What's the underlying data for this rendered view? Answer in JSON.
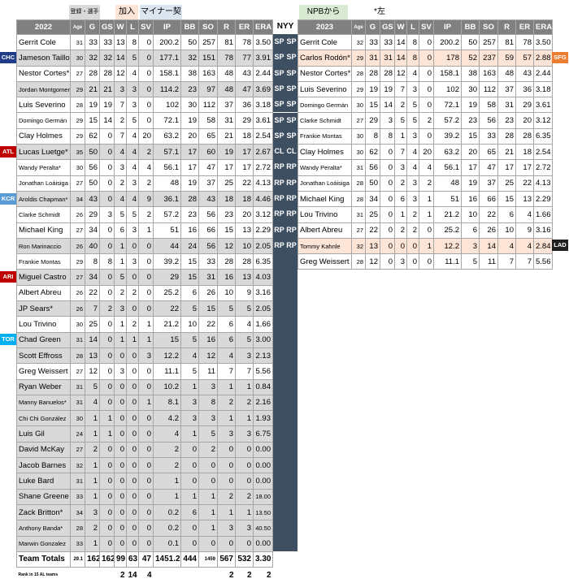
{
  "legend": {
    "gray_label": "登録・選手",
    "join_label": "加入",
    "minor_label": "マイナー契約",
    "npb_label": "NPBから",
    "left_note": "*左",
    "nyy_label": "NYY"
  },
  "colors": {
    "gray": "#d9d9d9",
    "peach": "#fce4d6",
    "header": "#808080",
    "role": "#3f4f62",
    "blue": "#dce6f1"
  },
  "table2022": {
    "year": "2022",
    "headers": [
      "Age",
      "G",
      "GS",
      "W",
      "L",
      "SV",
      "IP",
      "BB",
      "SO",
      "R",
      "ER",
      "ERA"
    ],
    "rows": [
      {
        "name": "Gerrit Cole",
        "age": "31",
        "g": "33",
        "gs": "33",
        "w": "13",
        "l": "8",
        "sv": "0",
        "ip": "200.2",
        "bb": "50",
        "so": "257",
        "r": "81",
        "er": "78",
        "era": "3.50",
        "style": ""
      },
      {
        "name": "Jameson Taillon",
        "age": "30",
        "g": "32",
        "gs": "32",
        "w": "14",
        "l": "5",
        "sv": "0",
        "ip": "177.1",
        "bb": "32",
        "so": "151",
        "r": "78",
        "er": "77",
        "era": "3.91",
        "style": "gray"
      },
      {
        "name": "Nestor Cortes*",
        "age": "27",
        "g": "28",
        "gs": "28",
        "w": "12",
        "l": "4",
        "sv": "0",
        "ip": "158.1",
        "bb": "38",
        "so": "163",
        "r": "48",
        "er": "43",
        "era": "2.44",
        "style": ""
      },
      {
        "name": "Jordan Montgomery*",
        "age": "29",
        "g": "21",
        "gs": "21",
        "w": "3",
        "l": "3",
        "sv": "0",
        "ip": "114.2",
        "bb": "23",
        "so": "97",
        "r": "48",
        "er": "47",
        "era": "3.69",
        "style": "gray",
        "small": true
      },
      {
        "name": "Luis Severino",
        "age": "28",
        "g": "19",
        "gs": "19",
        "w": "7",
        "l": "3",
        "sv": "0",
        "ip": "102",
        "bb": "30",
        "so": "112",
        "r": "37",
        "er": "36",
        "era": "3.18",
        "style": ""
      },
      {
        "name": "Domingo Germán",
        "age": "29",
        "g": "15",
        "gs": "14",
        "w": "2",
        "l": "5",
        "sv": "0",
        "ip": "72.1",
        "bb": "19",
        "so": "58",
        "r": "31",
        "er": "29",
        "era": "3.61",
        "style": "",
        "small": true
      },
      {
        "name": "Clay Holmes",
        "age": "29",
        "g": "62",
        "gs": "0",
        "w": "7",
        "l": "4",
        "sv": "20",
        "ip": "63.2",
        "bb": "20",
        "so": "65",
        "r": "21",
        "er": "18",
        "era": "2.54",
        "style": ""
      },
      {
        "name": "Lucas Luetge*",
        "age": "35",
        "g": "50",
        "gs": "0",
        "w": "4",
        "l": "4",
        "sv": "2",
        "ip": "57.1",
        "bb": "17",
        "so": "60",
        "r": "19",
        "er": "17",
        "era": "2.67",
        "style": "gray"
      },
      {
        "name": "Wandy Peralta*",
        "age": "30",
        "g": "56",
        "gs": "0",
        "w": "3",
        "l": "4",
        "sv": "4",
        "ip": "56.1",
        "bb": "17",
        "so": "47",
        "r": "17",
        "er": "17",
        "era": "2.72",
        "style": "",
        "small": true
      },
      {
        "name": "Jonathan Loáisiga",
        "age": "27",
        "g": "50",
        "gs": "0",
        "w": "2",
        "l": "3",
        "sv": "2",
        "ip": "48",
        "bb": "19",
        "so": "37",
        "r": "25",
        "er": "22",
        "era": "4.13",
        "style": "",
        "small": true
      },
      {
        "name": "Aroldis Chapman*",
        "age": "34",
        "g": "43",
        "gs": "0",
        "w": "4",
        "l": "4",
        "sv": "9",
        "ip": "36.1",
        "bb": "28",
        "so": "43",
        "r": "18",
        "er": "18",
        "era": "4.46",
        "style": "gray",
        "small": true
      },
      {
        "name": "Clarke Schmidt",
        "age": "26",
        "g": "29",
        "gs": "3",
        "w": "5",
        "l": "5",
        "sv": "2",
        "ip": "57.2",
        "bb": "23",
        "so": "56",
        "r": "23",
        "er": "20",
        "era": "3.12",
        "style": "",
        "small": true
      },
      {
        "name": "Michael King",
        "age": "27",
        "g": "34",
        "gs": "0",
        "w": "6",
        "l": "3",
        "sv": "1",
        "ip": "51",
        "bb": "16",
        "so": "66",
        "r": "15",
        "er": "13",
        "era": "2.29",
        "style": ""
      },
      {
        "name": "Ron Marinaccio",
        "age": "26",
        "g": "40",
        "gs": "0",
        "w": "1",
        "l": "0",
        "sv": "0",
        "ip": "44",
        "bb": "24",
        "so": "56",
        "r": "12",
        "er": "10",
        "era": "2.05",
        "style": "gray",
        "small": true
      },
      {
        "name": "Frankie Montas",
        "age": "29",
        "g": "8",
        "gs": "8",
        "w": "1",
        "l": "3",
        "sv": "0",
        "ip": "39.2",
        "bb": "15",
        "so": "33",
        "r": "28",
        "er": "28",
        "era": "6.35",
        "style": "",
        "small": true
      },
      {
        "name": "Miguel Castro",
        "age": "27",
        "g": "34",
        "gs": "0",
        "w": "5",
        "l": "0",
        "sv": "0",
        "ip": "29",
        "bb": "15",
        "so": "31",
        "r": "16",
        "er": "13",
        "era": "4.03",
        "style": "gray"
      },
      {
        "name": "Albert Abreu",
        "age": "26",
        "g": "22",
        "gs": "0",
        "w": "2",
        "l": "2",
        "sv": "0",
        "ip": "25.2",
        "bb": "6",
        "so": "26",
        "r": "10",
        "er": "9",
        "era": "3.16",
        "style": ""
      },
      {
        "name": "JP Sears*",
        "age": "26",
        "g": "7",
        "gs": "2",
        "w": "3",
        "l": "0",
        "sv": "0",
        "ip": "22",
        "bb": "5",
        "so": "15",
        "r": "5",
        "er": "5",
        "era": "2.05",
        "style": "gray"
      },
      {
        "name": "Lou Trivino",
        "age": "30",
        "g": "25",
        "gs": "0",
        "w": "1",
        "l": "2",
        "sv": "1",
        "ip": "21.2",
        "bb": "10",
        "so": "22",
        "r": "6",
        "er": "4",
        "era": "1.66",
        "style": ""
      },
      {
        "name": "Chad Green",
        "age": "31",
        "g": "14",
        "gs": "0",
        "w": "1",
        "l": "1",
        "sv": "1",
        "ip": "15",
        "bb": "5",
        "so": "16",
        "r": "6",
        "er": "5",
        "era": "3.00",
        "style": "gray"
      },
      {
        "name": "Scott Effross",
        "age": "28",
        "g": "13",
        "gs": "0",
        "w": "0",
        "l": "0",
        "sv": "3",
        "ip": "12.2",
        "bb": "4",
        "so": "12",
        "r": "4",
        "er": "3",
        "era": "2.13",
        "style": "gray"
      },
      {
        "name": "Greg Weissert",
        "age": "27",
        "g": "12",
        "gs": "0",
        "w": "3",
        "l": "0",
        "sv": "0",
        "ip": "11.1",
        "bb": "5",
        "so": "11",
        "r": "7",
        "er": "7",
        "era": "5.56",
        "style": ""
      },
      {
        "name": "Ryan Weber",
        "age": "31",
        "g": "5",
        "gs": "0",
        "w": "0",
        "l": "0",
        "sv": "0",
        "ip": "10.2",
        "bb": "1",
        "so": "3",
        "r": "1",
        "er": "1",
        "era": "0.84",
        "style": "gray"
      },
      {
        "name": "Manny Banuelos*",
        "age": "31",
        "g": "4",
        "gs": "0",
        "w": "0",
        "l": "0",
        "sv": "1",
        "ip": "8.1",
        "bb": "3",
        "so": "8",
        "r": "2",
        "er": "2",
        "era": "2.16",
        "style": "gray",
        "small": true
      },
      {
        "name": "Chi Chi González",
        "age": "30",
        "g": "1",
        "gs": "1",
        "w": "0",
        "l": "0",
        "sv": "0",
        "ip": "4.2",
        "bb": "3",
        "so": "3",
        "r": "1",
        "er": "1",
        "era": "1.93",
        "style": "gray",
        "small": true
      },
      {
        "name": "Luis Gil",
        "age": "24",
        "g": "1",
        "gs": "1",
        "w": "0",
        "l": "0",
        "sv": "0",
        "ip": "4",
        "bb": "1",
        "so": "5",
        "r": "3",
        "er": "3",
        "era": "6.75",
        "style": "gray"
      },
      {
        "name": "David McKay",
        "age": "27",
        "g": "2",
        "gs": "0",
        "w": "0",
        "l": "0",
        "sv": "0",
        "ip": "2",
        "bb": "0",
        "so": "2",
        "r": "0",
        "er": "0",
        "era": "0.00",
        "style": "gray"
      },
      {
        "name": "Jacob Barnes",
        "age": "32",
        "g": "1",
        "gs": "0",
        "w": "0",
        "l": "0",
        "sv": "0",
        "ip": "2",
        "bb": "0",
        "so": "0",
        "r": "0",
        "er": "0",
        "era": "0.00",
        "style": "gray"
      },
      {
        "name": "Luke Bard",
        "age": "31",
        "g": "1",
        "gs": "0",
        "w": "0",
        "l": "0",
        "sv": "0",
        "ip": "1",
        "bb": "0",
        "so": "0",
        "r": "0",
        "er": "0",
        "era": "0.00",
        "style": "gray"
      },
      {
        "name": "Shane Greene",
        "age": "33",
        "g": "1",
        "gs": "0",
        "w": "0",
        "l": "0",
        "sv": "0",
        "ip": "1",
        "bb": "1",
        "so": "1",
        "r": "2",
        "er": "2",
        "era": "18.00",
        "style": "gray",
        "smallera": true
      },
      {
        "name": "Zack Britton*",
        "age": "34",
        "g": "3",
        "gs": "0",
        "w": "0",
        "l": "0",
        "sv": "0",
        "ip": "0.2",
        "bb": "6",
        "so": "1",
        "r": "1",
        "er": "1",
        "era": "13.50",
        "style": "gray",
        "smallera": true
      },
      {
        "name": "Anthony Banda*",
        "age": "28",
        "g": "2",
        "gs": "0",
        "w": "0",
        "l": "0",
        "sv": "0",
        "ip": "0.2",
        "bb": "0",
        "so": "1",
        "r": "3",
        "er": "3",
        "era": "40.50",
        "style": "gray",
        "small": true,
        "smallera": true
      },
      {
        "name": "Marwin Gonzalez",
        "age": "33",
        "g": "1",
        "gs": "0",
        "w": "0",
        "l": "0",
        "sv": "0",
        "ip": "0.1",
        "bb": "0",
        "so": "0",
        "r": "0",
        "er": "0",
        "era": "0.00",
        "style": "gray",
        "small": true
      }
    ],
    "total": {
      "name": "Team Totals",
      "age": "29.1",
      "g": "162",
      "gs": "162",
      "w": "99",
      "l": "63",
      "sv": "47",
      "ip": "1451.2",
      "bb": "444",
      "so": "1459",
      "r": "567",
      "er": "532",
      "era": "3.30"
    },
    "rank": {
      "name": "Rank in 15 AL teams",
      "w": "2",
      "l": "14",
      "sv": "4",
      "r": "2",
      "er": "2",
      "era": "2"
    }
  },
  "table2023": {
    "year": "2023",
    "headers": [
      "Age",
      "G",
      "GS",
      "W",
      "L",
      "SV",
      "IP",
      "BB",
      "SO",
      "R",
      "ER",
      "ERA"
    ],
    "rows": [
      {
        "name": "Gerrit Cole",
        "age": "32",
        "g": "33",
        "gs": "33",
        "w": "14",
        "l": "8",
        "sv": "0",
        "ip": "200.2",
        "bb": "50",
        "so": "257",
        "r": "81",
        "er": "78",
        "era": "3.50",
        "style": ""
      },
      {
        "name": "Carlos Rodón*",
        "age": "29",
        "g": "31",
        "gs": "31",
        "w": "14",
        "l": "8",
        "sv": "0",
        "ip": "178",
        "bb": "52",
        "so": "237",
        "r": "59",
        "er": "57",
        "era": "2.88",
        "style": "peach"
      },
      {
        "name": "Nestor Cortes*",
        "age": "28",
        "g": "28",
        "gs": "28",
        "w": "12",
        "l": "4",
        "sv": "0",
        "ip": "158.1",
        "bb": "38",
        "so": "163",
        "r": "48",
        "er": "43",
        "era": "2.44",
        "style": ""
      },
      {
        "name": "Luis Severino",
        "age": "29",
        "g": "19",
        "gs": "19",
        "w": "7",
        "l": "3",
        "sv": "0",
        "ip": "102",
        "bb": "30",
        "so": "112",
        "r": "37",
        "er": "36",
        "era": "3.18",
        "style": ""
      },
      {
        "name": "Domingo Germán",
        "age": "30",
        "g": "15",
        "gs": "14",
        "w": "2",
        "l": "5",
        "sv": "0",
        "ip": "72.1",
        "bb": "19",
        "so": "58",
        "r": "31",
        "er": "29",
        "era": "3.61",
        "style": "",
        "small": true
      },
      {
        "name": "Clarke Schmidt",
        "age": "27",
        "g": "29",
        "gs": "3",
        "w": "5",
        "l": "5",
        "sv": "2",
        "ip": "57.2",
        "bb": "23",
        "so": "56",
        "r": "23",
        "er": "20",
        "era": "3.12",
        "style": "",
        "small": true
      },
      {
        "name": "Frankie Montas",
        "age": "30",
        "g": "8",
        "gs": "8",
        "w": "1",
        "l": "3",
        "sv": "0",
        "ip": "39.2",
        "bb": "15",
        "so": "33",
        "r": "28",
        "er": "28",
        "era": "6.35",
        "style": "",
        "small": true
      },
      {
        "name": "Clay Holmes",
        "age": "30",
        "g": "62",
        "gs": "0",
        "w": "7",
        "l": "4",
        "sv": "20",
        "ip": "63.2",
        "bb": "20",
        "so": "65",
        "r": "21",
        "er": "18",
        "era": "2.54",
        "style": ""
      },
      {
        "name": "Wandy Peralta*",
        "age": "31",
        "g": "56",
        "gs": "0",
        "w": "3",
        "l": "4",
        "sv": "4",
        "ip": "56.1",
        "bb": "17",
        "so": "47",
        "r": "17",
        "er": "17",
        "era": "2.72",
        "style": "",
        "small": true
      },
      {
        "name": "Jonathan Loáisiga",
        "age": "28",
        "g": "50",
        "gs": "0",
        "w": "2",
        "l": "3",
        "sv": "2",
        "ip": "48",
        "bb": "19",
        "so": "37",
        "r": "25",
        "er": "22",
        "era": "4.13",
        "style": "",
        "small": true
      },
      {
        "name": "Michael King",
        "age": "28",
        "g": "34",
        "gs": "0",
        "w": "6",
        "l": "3",
        "sv": "1",
        "ip": "51",
        "bb": "16",
        "so": "66",
        "r": "15",
        "er": "13",
        "era": "2.29",
        "style": ""
      },
      {
        "name": "Lou Trivino",
        "age": "31",
        "g": "25",
        "gs": "0",
        "w": "1",
        "l": "2",
        "sv": "1",
        "ip": "21.2",
        "bb": "10",
        "so": "22",
        "r": "6",
        "er": "4",
        "era": "1.66",
        "style": ""
      },
      {
        "name": "Albert Abreu",
        "age": "27",
        "g": "22",
        "gs": "0",
        "w": "2",
        "l": "2",
        "sv": "0",
        "ip": "25.2",
        "bb": "6",
        "so": "26",
        "r": "10",
        "er": "9",
        "era": "3.16",
        "style": ""
      },
      {
        "name": "Tommy Kahnle",
        "age": "32",
        "g": "13",
        "gs": "0",
        "w": "0",
        "l": "0",
        "sv": "1",
        "ip": "12.2",
        "bb": "3",
        "so": "14",
        "r": "4",
        "er": "4",
        "era": "2.84",
        "style": "peach",
        "small": true
      },
      {
        "name": "Greg Weissert",
        "age": "28",
        "g": "12",
        "gs": "0",
        "w": "3",
        "l": "0",
        "sv": "0",
        "ip": "11.1",
        "bb": "5",
        "so": "11",
        "r": "7",
        "er": "7",
        "era": "5.56",
        "style": ""
      }
    ]
  },
  "roles": [
    "SP",
    "SP",
    "SP",
    "SP",
    "SP",
    "SP",
    "SP",
    "CL",
    "RP",
    "RP",
    "RP",
    "RP",
    "RP",
    "RP"
  ],
  "roles_right": [
    "SP",
    "SP",
    "SP",
    "SP",
    "SP",
    "SP",
    "SP",
    "CL",
    "RP",
    "RP",
    "RP",
    "RP",
    "RP",
    "RP"
  ],
  "team_tags": [
    {
      "label": "CHC",
      "color": "#1f3c88",
      "row": 1,
      "side": "left"
    },
    {
      "label": "ATL",
      "color": "#c00000",
      "row": 7,
      "side": "left"
    },
    {
      "label": "KCR",
      "color": "#5b9bd5",
      "row": 10,
      "side": "left"
    },
    {
      "label": "ARI",
      "color": "#c00000",
      "row": 15,
      "side": "left"
    },
    {
      "label": "TOR",
      "color": "#00b0f0",
      "row": 19,
      "side": "left"
    },
    {
      "label": "SFG",
      "color": "#ed7d31",
      "row": 1,
      "side": "right"
    },
    {
      "label": "LAD",
      "color": "#1f1f1f",
      "row": 13,
      "side": "right"
    }
  ]
}
